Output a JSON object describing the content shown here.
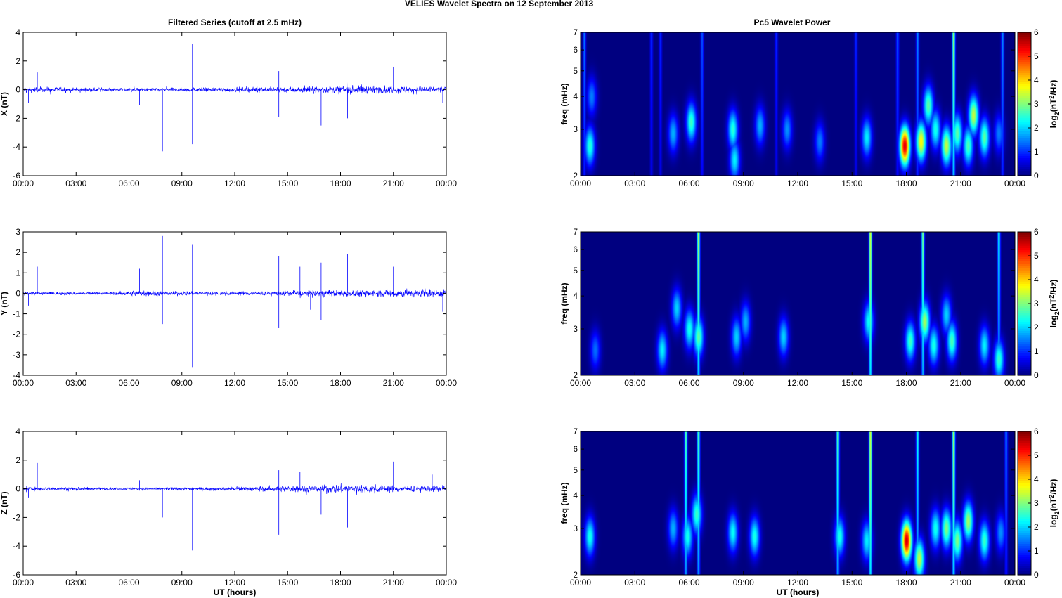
{
  "figure": {
    "suptitle": "VELIES Wavelet Spectra on 12 September 2013",
    "left_title": "Filtered Series (cutoff at 2.5 mHz)",
    "right_title": "Pc5 Wavelet Power",
    "xlabel": "UT (hours)",
    "freq_label": "freq (mHz)",
    "cbar_label_base": "log",
    "cbar_label_sub": "2",
    "cbar_label_open": "(nT",
    "cbar_label_sup": "2",
    "cbar_label_close": "/Hz)"
  },
  "chart_data": [
    {
      "type": "line",
      "title": "Filtered Series (cutoff at 2.5 mHz)",
      "xlabel": "",
      "ylabel": "X (nT)",
      "x_ticks": [
        "00:00",
        "03:00",
        "06:00",
        "09:00",
        "12:00",
        "15:00",
        "18:00",
        "21:00",
        "00:00"
      ],
      "y_ticks": [
        -6,
        -4,
        -2,
        0,
        2,
        4
      ],
      "ylim": [
        -6,
        4
      ],
      "color": "#0000ff",
      "baseline_noise": [
        [
          0,
          0.35
        ],
        [
          5,
          0.2
        ],
        [
          10,
          0.25
        ],
        [
          14.5,
          0.35
        ],
        [
          18,
          0.5
        ],
        [
          21,
          0.45
        ],
        [
          24,
          0.4
        ]
      ],
      "spikes": [
        [
          0.8,
          1.2
        ],
        [
          0.3,
          -0.9
        ],
        [
          6.0,
          1.0
        ],
        [
          6.0,
          -0.7
        ],
        [
          6.6,
          -1.1
        ],
        [
          7.9,
          -4.3
        ],
        [
          9.6,
          3.2
        ],
        [
          9.6,
          -3.8
        ],
        [
          14.5,
          1.3
        ],
        [
          14.5,
          -1.9
        ],
        [
          16.9,
          -2.5
        ],
        [
          18.2,
          1.5
        ],
        [
          18.4,
          -2.0
        ],
        [
          21.0,
          1.6
        ],
        [
          23.8,
          -0.9
        ]
      ]
    },
    {
      "type": "line",
      "title": "",
      "xlabel": "",
      "ylabel": "Y (nT)",
      "x_ticks": [
        "00:00",
        "03:00",
        "06:00",
        "09:00",
        "12:00",
        "15:00",
        "18:00",
        "21:00",
        "00:00"
      ],
      "y_ticks": [
        -4,
        -3,
        -2,
        -1,
        0,
        1,
        2,
        3
      ],
      "ylim": [
        -4,
        3
      ],
      "color": "#0000ff",
      "baseline_noise": [
        [
          0,
          0.15
        ],
        [
          5,
          0.12
        ],
        [
          6.5,
          0.25
        ],
        [
          10,
          0.15
        ],
        [
          14.5,
          0.2
        ],
        [
          18,
          0.3
        ],
        [
          21,
          0.35
        ],
        [
          24,
          0.3
        ]
      ],
      "spikes": [
        [
          0.8,
          1.3
        ],
        [
          0.3,
          -0.6
        ],
        [
          6.0,
          1.6
        ],
        [
          6.0,
          -1.6
        ],
        [
          6.6,
          1.2
        ],
        [
          7.9,
          2.8
        ],
        [
          7.9,
          -1.5
        ],
        [
          9.6,
          2.4
        ],
        [
          9.6,
          -3.6
        ],
        [
          14.5,
          1.8
        ],
        [
          14.5,
          -1.7
        ],
        [
          15.7,
          1.3
        ],
        [
          16.3,
          -0.8
        ],
        [
          16.9,
          1.5
        ],
        [
          16.9,
          -1.3
        ],
        [
          18.4,
          1.9
        ],
        [
          21.0,
          1.3
        ],
        [
          23.8,
          -0.9
        ]
      ]
    },
    {
      "type": "line",
      "title": "",
      "xlabel": "UT (hours)",
      "ylabel": "Z (nT)",
      "x_ticks": [
        "00:00",
        "03:00",
        "06:00",
        "09:00",
        "12:00",
        "15:00",
        "18:00",
        "21:00",
        "00:00"
      ],
      "y_ticks": [
        -6,
        -4,
        -2,
        0,
        2,
        4
      ],
      "ylim": [
        -6,
        4
      ],
      "color": "#0000ff",
      "baseline_noise": [
        [
          0,
          0.25
        ],
        [
          5,
          0.15
        ],
        [
          10,
          0.2
        ],
        [
          14.5,
          0.35
        ],
        [
          18,
          0.55
        ],
        [
          21,
          0.45
        ],
        [
          24,
          0.35
        ]
      ],
      "spikes": [
        [
          0.8,
          1.8
        ],
        [
          0.3,
          -0.6
        ],
        [
          6.0,
          -3.0
        ],
        [
          6.6,
          0.6
        ],
        [
          7.9,
          -2.0
        ],
        [
          9.6,
          -4.3
        ],
        [
          14.5,
          1.3
        ],
        [
          14.5,
          -3.2
        ],
        [
          15.7,
          1.2
        ],
        [
          16.9,
          -1.8
        ],
        [
          18.2,
          1.9
        ],
        [
          18.4,
          -2.7
        ],
        [
          21.0,
          1.9
        ],
        [
          23.2,
          1.0
        ]
      ]
    },
    {
      "type": "heatmap",
      "title": "Pc5 Wavelet Power",
      "xlabel": "",
      "ylabel": "freq (mHz)",
      "x_ticks": [
        "00:00",
        "03:00",
        "06:00",
        "09:00",
        "12:00",
        "15:00",
        "18:00",
        "21:00",
        "00:00"
      ],
      "y_ticks": [
        2,
        3,
        4,
        5,
        6,
        7
      ],
      "ylim": [
        2,
        7
      ],
      "yscale": "log",
      "colorbar_ticks": [
        0,
        1,
        2,
        3,
        4,
        5,
        6
      ],
      "colorbar_range": [
        0,
        6
      ],
      "colorbar_label": "log2(nT^2/Hz)",
      "colormap": "jet",
      "blobs": [
        [
          0.5,
          2.6,
          2.5
        ],
        [
          0.6,
          4.0,
          1.5
        ],
        [
          5.1,
          2.9,
          1.8
        ],
        [
          6.1,
          3.2,
          2.6
        ],
        [
          8.4,
          3.0,
          2.5
        ],
        [
          8.5,
          2.3,
          2.2
        ],
        [
          9.9,
          3.1,
          1.8
        ],
        [
          11.4,
          3.0,
          1.6
        ],
        [
          13.2,
          2.7,
          1.5
        ],
        [
          15.8,
          2.8,
          2.2
        ],
        [
          17.9,
          2.6,
          5.5
        ],
        [
          18.8,
          2.7,
          3.8
        ],
        [
          19.2,
          3.7,
          2.8
        ],
        [
          19.6,
          3.0,
          2.4
        ],
        [
          20.2,
          2.6,
          3.4
        ],
        [
          20.8,
          2.9,
          2.8
        ],
        [
          21.4,
          2.6,
          2.7
        ],
        [
          21.7,
          3.4,
          3.4
        ],
        [
          22.3,
          2.8,
          2.8
        ],
        [
          23.1,
          2.9,
          1.5
        ]
      ],
      "streaks": [
        [
          0.2,
          1.5
        ],
        [
          3.9,
          1.0
        ],
        [
          4.4,
          1.0
        ],
        [
          6.7,
          1.3
        ],
        [
          10.8,
          1.0
        ],
        [
          15.2,
          1.0
        ],
        [
          17.5,
          1.3
        ],
        [
          18.6,
          1.6
        ],
        [
          20.6,
          3.3
        ],
        [
          23.3,
          1.6
        ]
      ]
    },
    {
      "type": "heatmap",
      "title": "",
      "xlabel": "",
      "ylabel": "freq (mHz)",
      "x_ticks": [
        "00:00",
        "03:00",
        "06:00",
        "09:00",
        "12:00",
        "15:00",
        "18:00",
        "21:00",
        "00:00"
      ],
      "y_ticks": [
        2,
        3,
        4,
        5,
        6,
        7
      ],
      "ylim": [
        2,
        7
      ],
      "yscale": "log",
      "colorbar_ticks": [
        0,
        1,
        2,
        3,
        4,
        5,
        6
      ],
      "colorbar_range": [
        0,
        6
      ],
      "colorbar_label": "log2(nT^2/Hz)",
      "colormap": "jet",
      "blobs": [
        [
          0.8,
          2.5,
          1.4
        ],
        [
          4.5,
          2.5,
          2.2
        ],
        [
          5.3,
          3.6,
          2.0
        ],
        [
          6.0,
          3.0,
          2.4
        ],
        [
          6.5,
          2.8,
          2.8
        ],
        [
          8.6,
          2.8,
          2.0
        ],
        [
          9.1,
          3.2,
          1.8
        ],
        [
          11.2,
          2.8,
          2.0
        ],
        [
          15.9,
          3.2,
          2.3
        ],
        [
          18.2,
          2.7,
          2.6
        ],
        [
          19.0,
          3.2,
          3.2
        ],
        [
          19.5,
          2.6,
          2.4
        ],
        [
          20.5,
          2.7,
          2.7
        ],
        [
          20.2,
          3.4,
          2.0
        ],
        [
          22.3,
          2.6,
          2.2
        ],
        [
          23.1,
          2.3,
          2.6
        ]
      ],
      "streaks": [
        [
          6.5,
          3.4
        ],
        [
          16.0,
          3.6
        ],
        [
          18.9,
          3.0
        ],
        [
          23.1,
          2.4
        ]
      ]
    },
    {
      "type": "heatmap",
      "title": "",
      "xlabel": "UT (hours)",
      "ylabel": "freq (mHz)",
      "x_ticks": [
        "00:00",
        "03:00",
        "06:00",
        "09:00",
        "12:00",
        "15:00",
        "18:00",
        "21:00",
        "00:00"
      ],
      "y_ticks": [
        2,
        3,
        4,
        5,
        6,
        7
      ],
      "ylim": [
        2,
        7
      ],
      "yscale": "log",
      "colorbar_ticks": [
        0,
        1,
        2,
        3,
        4,
        5,
        6
      ],
      "colorbar_range": [
        0,
        6
      ],
      "colorbar_label": "log2(nT^2/Hz)",
      "colormap": "jet",
      "blobs": [
        [
          0.5,
          2.8,
          2.4
        ],
        [
          5.1,
          3.0,
          1.8
        ],
        [
          5.9,
          2.8,
          2.4
        ],
        [
          6.4,
          3.4,
          2.6
        ],
        [
          8.4,
          2.9,
          2.3
        ],
        [
          9.6,
          2.8,
          2.4
        ],
        [
          14.3,
          2.8,
          2.4
        ],
        [
          15.8,
          2.7,
          2.2
        ],
        [
          18.0,
          2.7,
          5.6
        ],
        [
          18.7,
          2.3,
          3.4
        ],
        [
          19.6,
          3.0,
          2.4
        ],
        [
          20.2,
          3.0,
          3.0
        ],
        [
          20.8,
          2.7,
          3.0
        ],
        [
          21.4,
          3.2,
          3.2
        ],
        [
          22.3,
          2.7,
          2.6
        ],
        [
          23.2,
          2.9,
          1.6
        ]
      ],
      "streaks": [
        [
          5.8,
          2.8
        ],
        [
          6.5,
          2.8
        ],
        [
          14.2,
          3.0
        ],
        [
          16.0,
          3.6
        ],
        [
          18.6,
          2.4
        ],
        [
          20.6,
          3.4
        ],
        [
          23.5,
          1.5
        ]
      ]
    }
  ]
}
